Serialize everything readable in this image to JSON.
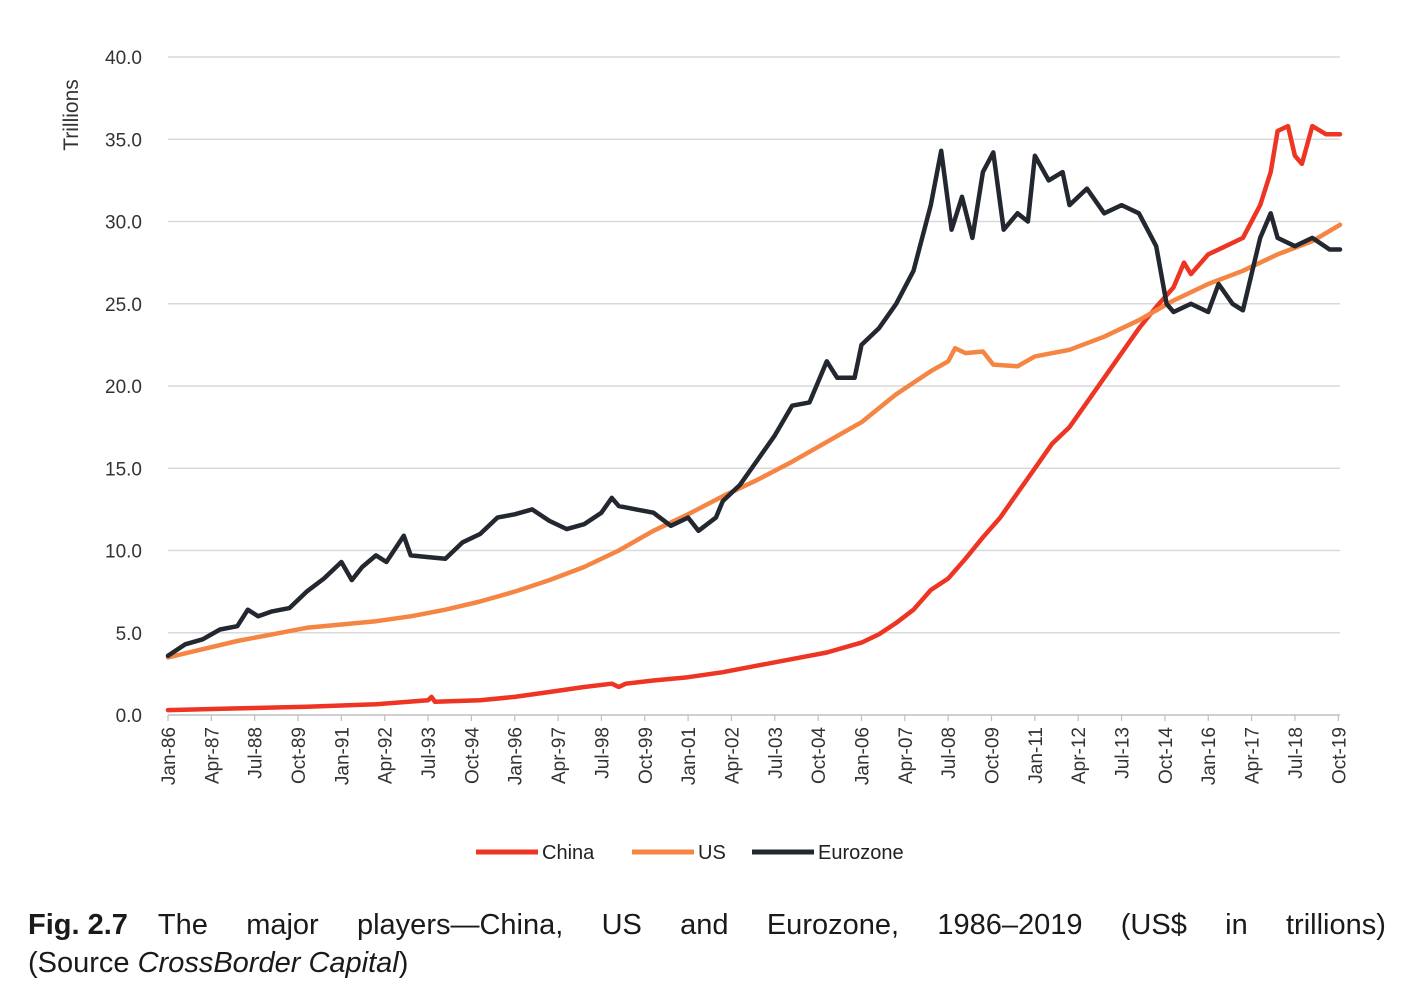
{
  "chart_data": {
    "type": "line",
    "ylabel": "Trillions",
    "ylim": [
      0,
      40
    ],
    "yticks": [
      "0.0",
      "5.0",
      "10.0",
      "15.0",
      "20.0",
      "25.0",
      "30.0",
      "35.0",
      "40.0"
    ],
    "xticks": [
      "Jan-86",
      "Apr-87",
      "Jul-88",
      "Oct-89",
      "Jan-91",
      "Apr-92",
      "Jul-93",
      "Oct-94",
      "Jan-96",
      "Apr-97",
      "Jul-98",
      "Oct-99",
      "Jan-01",
      "Apr-02",
      "Jul-03",
      "Oct-04",
      "Jan-06",
      "Apr-07",
      "Jul-08",
      "Oct-09",
      "Jan-11",
      "Apr-12",
      "Jul-13",
      "Oct-14",
      "Jan-16",
      "Apr-17",
      "Jul-18",
      "Oct-19"
    ],
    "grid": "horizontal",
    "legend": "bottom",
    "series": [
      {
        "name": "China",
        "color": "#ee3524",
        "points": [
          [
            1986.0,
            0.3
          ],
          [
            1988.0,
            0.4
          ],
          [
            1990.0,
            0.5
          ],
          [
            1992.0,
            0.65
          ],
          [
            1993.5,
            0.9
          ],
          [
            1993.6,
            1.1
          ],
          [
            1993.7,
            0.8
          ],
          [
            1995.0,
            0.9
          ],
          [
            1996.0,
            1.1
          ],
          [
            1997.0,
            1.4
          ],
          [
            1998.0,
            1.7
          ],
          [
            1998.8,
            1.9
          ],
          [
            1999.0,
            1.7
          ],
          [
            1999.2,
            1.9
          ],
          [
            2000.0,
            2.1
          ],
          [
            2001.0,
            2.3
          ],
          [
            2002.0,
            2.6
          ],
          [
            2003.0,
            3.0
          ],
          [
            2004.0,
            3.4
          ],
          [
            2005.0,
            3.8
          ],
          [
            2006.0,
            4.4
          ],
          [
            2006.5,
            4.9
          ],
          [
            2007.0,
            5.6
          ],
          [
            2007.5,
            6.4
          ],
          [
            2008.0,
            7.6
          ],
          [
            2008.5,
            8.3
          ],
          [
            2009.0,
            9.5
          ],
          [
            2009.5,
            10.8
          ],
          [
            2010.0,
            12.0
          ],
          [
            2010.5,
            13.5
          ],
          [
            2011.0,
            15.0
          ],
          [
            2011.5,
            16.5
          ],
          [
            2012.0,
            17.5
          ],
          [
            2012.5,
            19.0
          ],
          [
            2013.0,
            20.5
          ],
          [
            2013.5,
            22.0
          ],
          [
            2014.0,
            23.5
          ],
          [
            2014.5,
            24.8
          ],
          [
            2015.0,
            26.0
          ],
          [
            2015.3,
            27.5
          ],
          [
            2015.5,
            26.8
          ],
          [
            2016.0,
            28.0
          ],
          [
            2016.5,
            28.5
          ],
          [
            2017.0,
            29.0
          ],
          [
            2017.5,
            31.0
          ],
          [
            2017.8,
            33.0
          ],
          [
            2018.0,
            35.5
          ],
          [
            2018.3,
            35.8
          ],
          [
            2018.5,
            34.0
          ],
          [
            2018.7,
            33.5
          ],
          [
            2019.0,
            35.8
          ],
          [
            2019.4,
            35.3
          ],
          [
            2019.8,
            35.3
          ]
        ]
      },
      {
        "name": "US",
        "color": "#f58542",
        "points": [
          [
            1986.0,
            3.5
          ],
          [
            1987.0,
            4.0
          ],
          [
            1988.0,
            4.5
          ],
          [
            1989.0,
            4.9
          ],
          [
            1990.0,
            5.3
          ],
          [
            1991.0,
            5.5
          ],
          [
            1992.0,
            5.7
          ],
          [
            1993.0,
            6.0
          ],
          [
            1994.0,
            6.4
          ],
          [
            1995.0,
            6.9
          ],
          [
            1996.0,
            7.5
          ],
          [
            1997.0,
            8.2
          ],
          [
            1998.0,
            9.0
          ],
          [
            1999.0,
            10.0
          ],
          [
            2000.0,
            11.2
          ],
          [
            2001.0,
            12.2
          ],
          [
            2002.0,
            13.3
          ],
          [
            2003.0,
            14.3
          ],
          [
            2004.0,
            15.4
          ],
          [
            2005.0,
            16.6
          ],
          [
            2006.0,
            17.8
          ],
          [
            2007.0,
            19.5
          ],
          [
            2008.0,
            20.9
          ],
          [
            2008.5,
            21.5
          ],
          [
            2008.7,
            22.3
          ],
          [
            2009.0,
            22.0
          ],
          [
            2009.5,
            22.1
          ],
          [
            2009.8,
            21.3
          ],
          [
            2010.5,
            21.2
          ],
          [
            2011.0,
            21.8
          ],
          [
            2012.0,
            22.2
          ],
          [
            2013.0,
            23.0
          ],
          [
            2014.0,
            24.0
          ],
          [
            2015.0,
            25.2
          ],
          [
            2016.0,
            26.2
          ],
          [
            2017.0,
            27.0
          ],
          [
            2018.0,
            28.0
          ],
          [
            2019.0,
            28.8
          ],
          [
            2019.8,
            29.8
          ]
        ]
      },
      {
        "name": "Eurozone",
        "color": "#23272f",
        "points": [
          [
            1986.0,
            3.6
          ],
          [
            1986.5,
            4.3
          ],
          [
            1987.0,
            4.6
          ],
          [
            1987.5,
            5.2
          ],
          [
            1988.0,
            5.4
          ],
          [
            1988.3,
            6.4
          ],
          [
            1988.6,
            6.0
          ],
          [
            1989.0,
            6.3
          ],
          [
            1989.5,
            6.5
          ],
          [
            1990.0,
            7.5
          ],
          [
            1990.5,
            8.3
          ],
          [
            1991.0,
            9.3
          ],
          [
            1991.3,
            8.2
          ],
          [
            1991.6,
            9.0
          ],
          [
            1992.0,
            9.7
          ],
          [
            1992.3,
            9.3
          ],
          [
            1992.8,
            10.9
          ],
          [
            1993.0,
            9.7
          ],
          [
            1993.5,
            9.6
          ],
          [
            1994.0,
            9.5
          ],
          [
            1994.5,
            10.5
          ],
          [
            1995.0,
            11.0
          ],
          [
            1995.5,
            12.0
          ],
          [
            1996.0,
            12.2
          ],
          [
            1996.5,
            12.5
          ],
          [
            1997.0,
            11.8
          ],
          [
            1997.5,
            11.3
          ],
          [
            1998.0,
            11.6
          ],
          [
            1998.5,
            12.3
          ],
          [
            1998.8,
            13.2
          ],
          [
            1999.0,
            12.7
          ],
          [
            1999.5,
            12.5
          ],
          [
            2000.0,
            12.3
          ],
          [
            2000.5,
            11.5
          ],
          [
            2001.0,
            12.0
          ],
          [
            2001.3,
            11.2
          ],
          [
            2001.8,
            12.0
          ],
          [
            2002.0,
            13.0
          ],
          [
            2002.5,
            14.0
          ],
          [
            2003.0,
            15.5
          ],
          [
            2003.5,
            17.0
          ],
          [
            2004.0,
            18.8
          ],
          [
            2004.5,
            19.0
          ],
          [
            2005.0,
            21.5
          ],
          [
            2005.3,
            20.5
          ],
          [
            2005.8,
            20.5
          ],
          [
            2006.0,
            22.5
          ],
          [
            2006.5,
            23.5
          ],
          [
            2007.0,
            25.0
          ],
          [
            2007.5,
            27.0
          ],
          [
            2008.0,
            31.0
          ],
          [
            2008.3,
            34.3
          ],
          [
            2008.6,
            29.5
          ],
          [
            2008.9,
            31.5
          ],
          [
            2009.2,
            29.0
          ],
          [
            2009.5,
            33.0
          ],
          [
            2009.8,
            34.2
          ],
          [
            2010.1,
            29.5
          ],
          [
            2010.5,
            30.5
          ],
          [
            2010.8,
            30.0
          ],
          [
            2011.0,
            34.0
          ],
          [
            2011.4,
            32.5
          ],
          [
            2011.8,
            33.0
          ],
          [
            2012.0,
            31.0
          ],
          [
            2012.5,
            32.0
          ],
          [
            2013.0,
            30.5
          ],
          [
            2013.5,
            31.0
          ],
          [
            2014.0,
            30.5
          ],
          [
            2014.5,
            28.5
          ],
          [
            2014.8,
            25.0
          ],
          [
            2015.0,
            24.5
          ],
          [
            2015.5,
            25.0
          ],
          [
            2016.0,
            24.5
          ],
          [
            2016.3,
            26.2
          ],
          [
            2016.7,
            25.0
          ],
          [
            2017.0,
            24.6
          ],
          [
            2017.5,
            29.0
          ],
          [
            2017.8,
            30.5
          ],
          [
            2018.0,
            29.0
          ],
          [
            2018.5,
            28.5
          ],
          [
            2019.0,
            29.0
          ],
          [
            2019.5,
            28.3
          ],
          [
            2019.8,
            28.3
          ]
        ]
      }
    ]
  },
  "caption": {
    "fig_label": "Fig. 2.7",
    "title_words": [
      "The",
      "major",
      "players—China,",
      "US",
      "and",
      "Eurozone,",
      "1986–2019",
      "(US$",
      "in",
      "trillions)"
    ],
    "source_prefix": "(Source ",
    "source_name": "CrossBorder Capital",
    "source_suffix": ")"
  }
}
